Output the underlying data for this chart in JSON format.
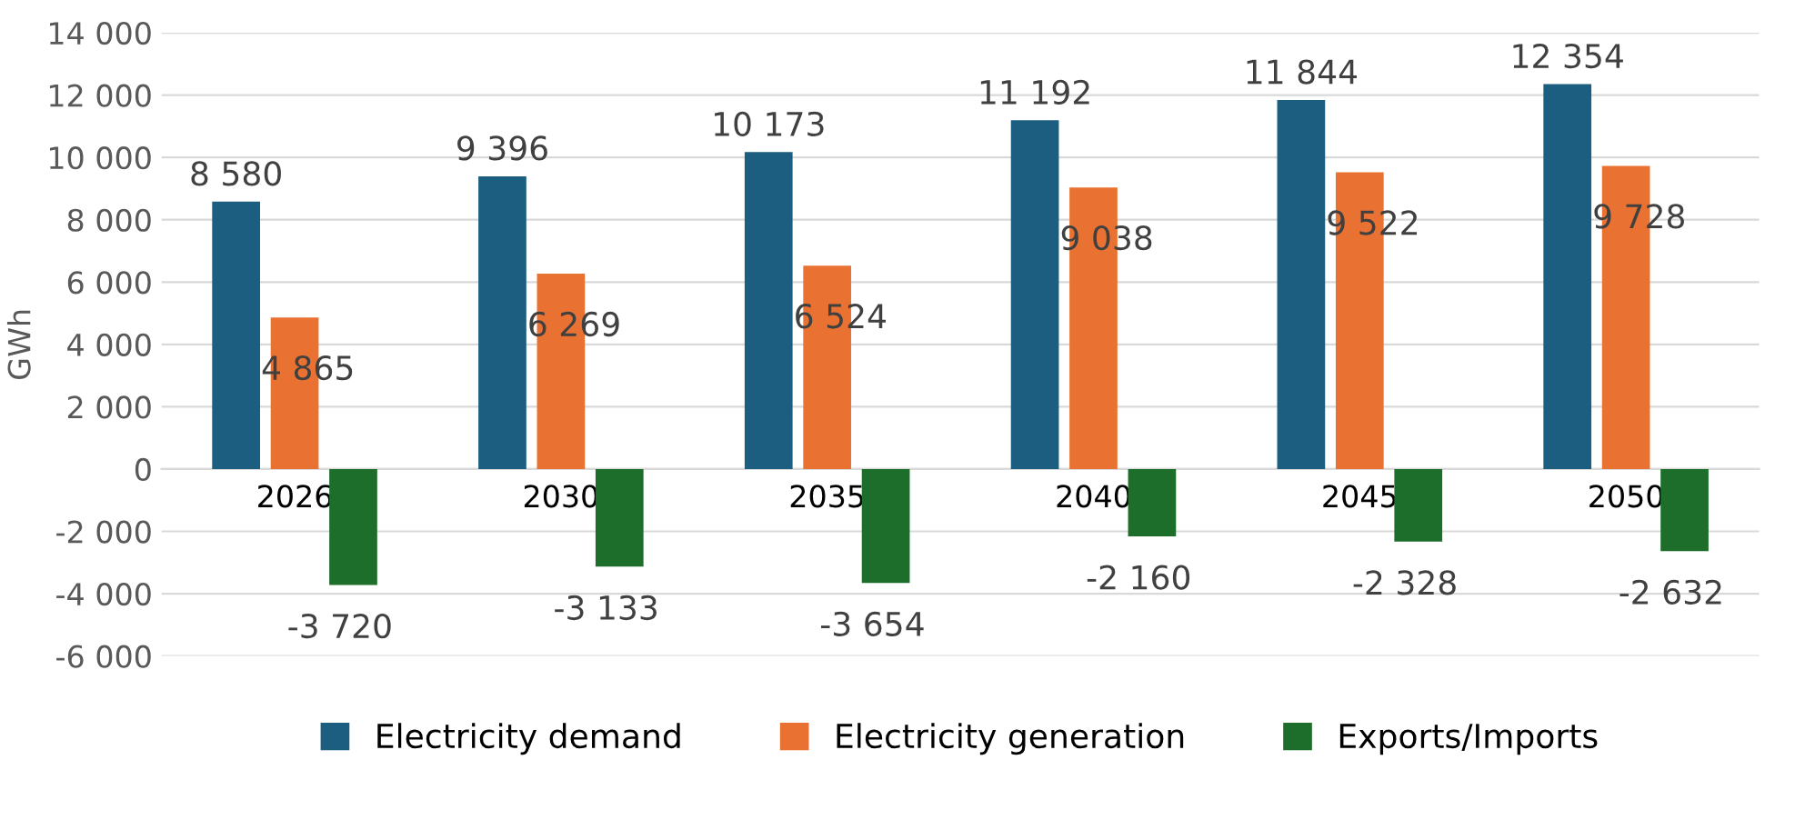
{
  "chart_data": {
    "type": "bar",
    "ylabel": "GWh",
    "categories": [
      "2026",
      "2030",
      "2035",
      "2040",
      "2045",
      "2050"
    ],
    "series": [
      {
        "name": "Electricity demand",
        "color": "#1b5e80",
        "values": [
          8580,
          9396,
          10173,
          11192,
          11844,
          12354
        ],
        "value_labels": [
          "8 580",
          "9 396",
          "10 173",
          "11 192",
          "11 844",
          "12 354"
        ]
      },
      {
        "name": "Electricity generation",
        "color": "#e97132",
        "values": [
          4865,
          6269,
          6524,
          9038,
          9522,
          9728
        ],
        "value_labels": [
          "4 865",
          "6 269",
          "6 524",
          "9 038",
          "9 522",
          "9 728"
        ]
      },
      {
        "name": "Exports/Imports",
        "color": "#1e6e2b",
        "values": [
          -3720,
          -3133,
          -3654,
          -2160,
          -2328,
          -2632
        ],
        "value_labels": [
          "-3 720",
          "-3 133",
          "-3 654",
          "-2 160",
          "-2 328",
          "-2 632"
        ]
      }
    ],
    "ylim": [
      -6000,
      14000
    ],
    "yticks": [
      {
        "value": -6000,
        "label": "-6 000"
      },
      {
        "value": -4000,
        "label": "-4 000"
      },
      {
        "value": -2000,
        "label": "-2 000"
      },
      0,
      {
        "value": 2000,
        "label": "2 000"
      },
      {
        "value": 4000,
        "label": "4 000"
      },
      {
        "value": 6000,
        "label": "6 000"
      },
      {
        "value": 8000,
        "label": "8 000"
      },
      {
        "value": 10000,
        "label": "10 000"
      },
      {
        "value": 12000,
        "label": "12 000"
      },
      {
        "value": 14000,
        "label": "14 000"
      }
    ],
    "grid": "y",
    "legend": "bottom"
  }
}
